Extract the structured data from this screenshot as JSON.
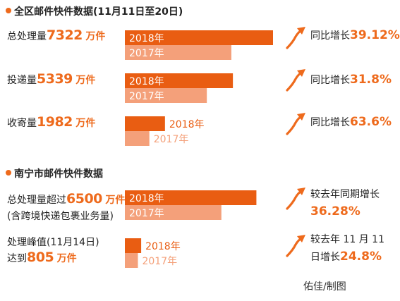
{
  "section1": {
    "title": "全区邮件快件数据(11月11日至20日)"
  },
  "section2": {
    "title": "南宁市邮件快件数据"
  },
  "rows": [
    {
      "prefix": "总处理量",
      "number": "7322",
      "unit": "万件",
      "suffix": "",
      "growth_prefix": "同比增长",
      "growth_value": "39.12%",
      "growth_suffix": ""
    },
    {
      "prefix": "投递量",
      "number": "5339",
      "unit": "万件",
      "suffix": "",
      "growth_prefix": "同比增长",
      "growth_value": "31.8%",
      "growth_suffix": ""
    },
    {
      "prefix": "收寄量",
      "number": "1982",
      "unit": "万件",
      "suffix": "",
      "growth_prefix": "同比增长",
      "growth_value": "63.6%",
      "growth_suffix": ""
    },
    {
      "prefix": "总处理量超过",
      "number": "6500",
      "unit": "万件",
      "suffix": "(含跨境快递包裹业务量)",
      "growth_prefix": "较去年同期增长",
      "growth_value": "36.28%",
      "growth_suffix": ""
    },
    {
      "prefix": "达到",
      "number": "805",
      "unit": "万件",
      "top_line": "处理峰值(11月14日)",
      "growth_prefix": "较去年 11 月 11",
      "growth_value": "24.8%",
      "growth_line2_prefix": "日增长"
    }
  ],
  "credit": "佑佳/制图",
  "colors": {
    "y2018": "#e95d12",
    "y2017": "#f4a07a",
    "accent": "#ee6a1c"
  },
  "chart_data": [
    {
      "type": "bar",
      "categories": [
        "总处理量",
        "投递量",
        "收寄量"
      ],
      "series": [
        {
          "name": "2018年",
          "values": [
            7322,
            5339,
            1982
          ]
        },
        {
          "name": "2017年",
          "values": [
            5264,
            4051,
            1211
          ]
        }
      ]
    },
    {
      "type": "bar",
      "categories": [
        "总处理量",
        "处理峰值"
      ],
      "series": [
        {
          "name": "2018年",
          "values": [
            6500,
            805
          ]
        },
        {
          "name": "2017年",
          "values": [
            4770,
            645
          ]
        }
      ]
    }
  ]
}
